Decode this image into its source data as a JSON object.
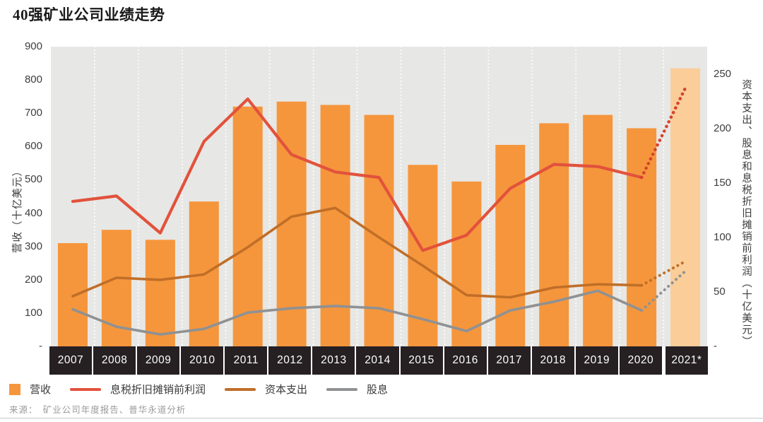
{
  "title": "40强矿业公司业绩走势",
  "source": "来源：　矿业公司年度报告、普华永道分析",
  "axes": {
    "left_label": "营收（十亿美元）",
    "right_label": "资本支出、股息和息税折旧摊销前利润（十亿美元）",
    "left_ticks": [
      {
        "label": "900",
        "value": 900
      },
      {
        "label": "800",
        "value": 800
      },
      {
        "label": "700",
        "value": 700
      },
      {
        "label": "600",
        "value": 600
      },
      {
        "label": "500",
        "value": 500
      },
      {
        "label": "400",
        "value": 400
      },
      {
        "label": "300",
        "value": 300
      },
      {
        "label": "200",
        "value": 200
      },
      {
        "label": "100",
        "value": 100
      },
      {
        "label": "-",
        "value": 0
      }
    ],
    "right_ticks": [
      {
        "label": "250",
        "value": 250
      },
      {
        "label": "200",
        "value": 200
      },
      {
        "label": "150",
        "value": 150
      },
      {
        "label": "100",
        "value": 100
      },
      {
        "label": "50",
        "value": 50
      },
      {
        "label": "-",
        "value": 0
      }
    ]
  },
  "legend": [
    {
      "label": "营收",
      "marker": "square",
      "color_key": "revenue_bar"
    },
    {
      "label": "息税折旧摊销前利润",
      "marker": "line",
      "color_key": "ebitda_line"
    },
    {
      "label": "资本支出",
      "marker": "line",
      "color_key": "capex_line"
    },
    {
      "label": "股息",
      "marker": "line",
      "color_key": "dividend_line"
    }
  ],
  "colors": {
    "revenue_bar": "#F5963C",
    "revenue_bar_forecast": "#FACD99",
    "ebitda_line": "#E2523C",
    "ebitda_dotted": "#D7422D",
    "capex_line": "#C06E28",
    "dividend_line": "#8F9193",
    "plot_background": "#E7E7E5",
    "gridline": "#FFFFFF",
    "axis_strip_background": "#262022",
    "year_label_text": "#FFFFFF",
    "tick_text": "#3D3D3D",
    "source_text": "#9B9B9B",
    "rule": "#CCCBCA"
  },
  "chart_data": {
    "type": "bar",
    "subtype": "bar-line combo, dual axis, last category is forecast (lighter bar, dotted line segments)",
    "title": "40强矿业公司业绩走势",
    "categories": [
      "2007",
      "2008",
      "2009",
      "2010",
      "2011",
      "2012",
      "2013",
      "2014",
      "2015",
      "2016",
      "2017",
      "2018",
      "2019",
      "2020",
      "2021*"
    ],
    "series": [
      {
        "name": "营收",
        "type": "bar",
        "axis": "left",
        "color_key": "revenue_bar",
        "values": [
          310,
          350,
          320,
          435,
          720,
          735,
          725,
          695,
          545,
          495,
          605,
          670,
          695,
          655,
          835
        ]
      },
      {
        "name": "息税折旧摊销前利润",
        "type": "line",
        "axis": "right",
        "color_key": "ebitda_line",
        "dotted_color_key": "ebitda_dotted",
        "values": [
          133,
          138,
          104,
          188,
          227,
          176,
          160,
          155,
          88,
          102,
          145,
          167,
          165,
          155,
          237
        ]
      },
      {
        "name": "资本支出",
        "type": "line",
        "axis": "right",
        "color_key": "capex_line",
        "dotted_color_key": "capex_line",
        "values": [
          46,
          63,
          61,
          66,
          91,
          119,
          127,
          100,
          74,
          47,
          45,
          54,
          57,
          56,
          78
        ]
      },
      {
        "name": "股息",
        "type": "line",
        "axis": "right",
        "color_key": "dividend_line",
        "dotted_color_key": "dividend_line",
        "values": [
          34,
          18,
          11,
          16,
          31,
          35,
          37,
          35,
          25,
          14,
          33,
          41,
          51,
          33,
          69
        ]
      }
    ],
    "ylabel_left": "营收（十亿美元）",
    "ylabel_right": "资本支出、股息和息税折旧摊销前利润（十亿美元）",
    "ylim_left": [
      0,
      900
    ],
    "ylim_right_display": [
      0,
      250
    ],
    "ylim_right_scale": [
      0,
      275
    ],
    "grid": "vertical white dotted lines at category boundaries",
    "legend_position": "bottom-left",
    "forecast_index": 14
  }
}
